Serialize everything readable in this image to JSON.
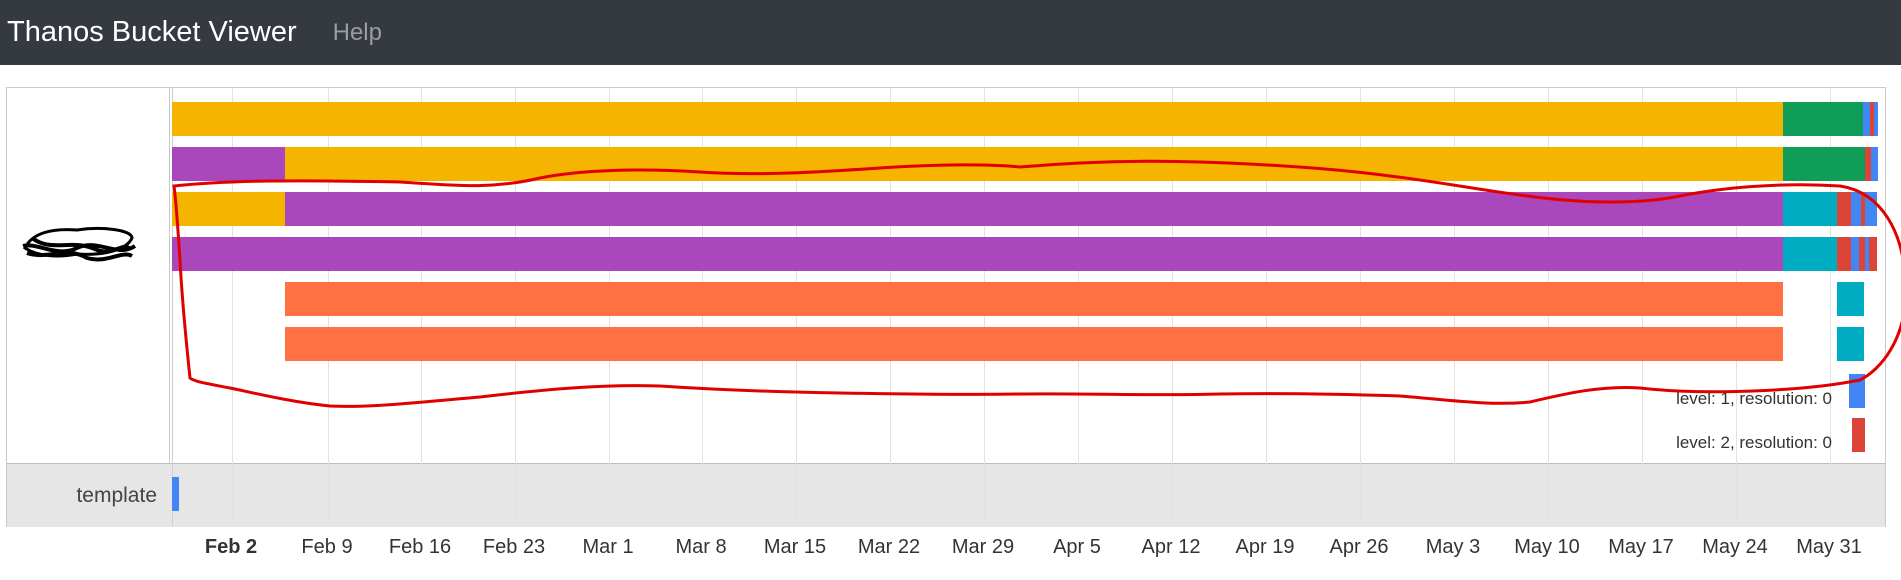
{
  "navbar": {
    "brand": "Thanos Bucket Viewer",
    "help": "Help"
  },
  "template_row": {
    "label": "template"
  },
  "x_ticks": [
    "Feb 2",
    "Feb 9",
    "Feb 16",
    "Feb 23",
    "Mar 1",
    "Mar 8",
    "Mar 15",
    "Mar 22",
    "Mar 29",
    "Apr 5",
    "Apr 12",
    "Apr 19",
    "Apr 26",
    "May 3",
    "May 10",
    "May 17",
    "May 24",
    "May 31"
  ],
  "bold_tick_index": 0,
  "legend": [
    {
      "label": "level: 1, resolution: 0",
      "color": "#4285f4"
    },
    {
      "label": "level: 2, resolution: 0",
      "color": "#db4437"
    }
  ],
  "colors": {
    "yellow": "#f4b400",
    "purple": "#ab47bc",
    "orange": "#ff7043",
    "green": "#0f9d58",
    "teal": "#00acc1",
    "blue": "#4285f4",
    "red": "#db4437",
    "annotation": "#e00000"
  }
}
